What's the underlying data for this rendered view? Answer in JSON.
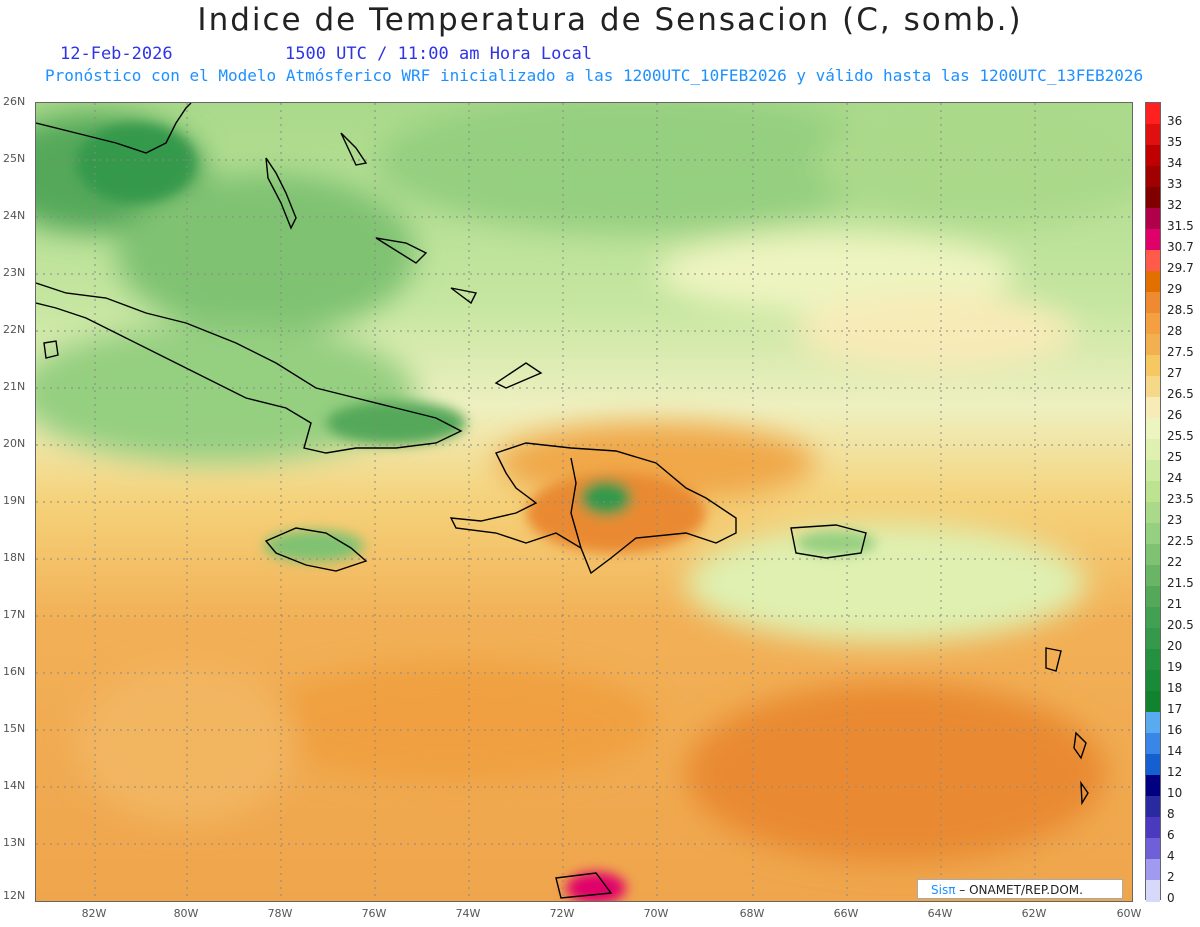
{
  "header": {
    "title": "Indice de Temperatura de Sensacion (C, somb.)",
    "date": "12-Feb-2026",
    "time": "1500 UTC / 11:00 am Hora Local",
    "forecast": "Pronóstico con el Modelo Atmósferico WRF inicializado a las 1200UTC_10FEB2026 y válido hasta las  1200UTC_13FEB2026"
  },
  "axes": {
    "lat_labels": [
      "26N",
      "25N",
      "24N",
      "23N",
      "22N",
      "21N",
      "20N",
      "19N",
      "18N",
      "17N",
      "16N",
      "15N",
      "14N",
      "13N",
      "12N"
    ],
    "lon_labels": [
      "82W",
      "80W",
      "78W",
      "76W",
      "74W",
      "72W",
      "70W",
      "68W",
      "66W",
      "64W",
      "62W",
      "60W"
    ]
  },
  "colorbar": {
    "labels": [
      "36",
      "35",
      "34",
      "33",
      "32",
      "31.5",
      "30.7",
      "29.7",
      "29",
      "28.5",
      "28",
      "27.5",
      "27",
      "26.5",
      "26",
      "25.5",
      "25",
      "24",
      "23.5",
      "23",
      "22.5",
      "22",
      "21.5",
      "21",
      "20.5",
      "20",
      "19",
      "18",
      "17",
      "16",
      "14",
      "12",
      "10",
      "8",
      "6",
      "4",
      "2",
      "0"
    ],
    "colors": [
      "#ff2020",
      "#e01010",
      "#c00000",
      "#a00000",
      "#800000",
      "#b0004a",
      "#e0006a",
      "#ff5a4a",
      "#e27000",
      "#f08a30",
      "#f4a040",
      "#f2b050",
      "#f5c862",
      "#f5d888",
      "#f7ebb8",
      "#eef4c0",
      "#dff0b0",
      "#cceaa0",
      "#bde390",
      "#aad98a",
      "#95cf80",
      "#7fc272",
      "#6ab565",
      "#55a85a",
      "#42a053",
      "#35994b",
      "#259140",
      "#188a38",
      "#11832f",
      "#5aaaf0",
      "#3a85e8",
      "#1460d0",
      "#000080",
      "#2a2aa0",
      "#4b3ac0",
      "#7060d8",
      "#a09af0",
      "#d8d8fa"
    ]
  },
  "map": {
    "lat_range": [
      11.8,
      26.1
    ],
    "lon_range": [
      -83.3,
      -60
    ]
  },
  "credit": {
    "brand": "Sisπ",
    "org": " – ONAMET/REP.DOM."
  }
}
